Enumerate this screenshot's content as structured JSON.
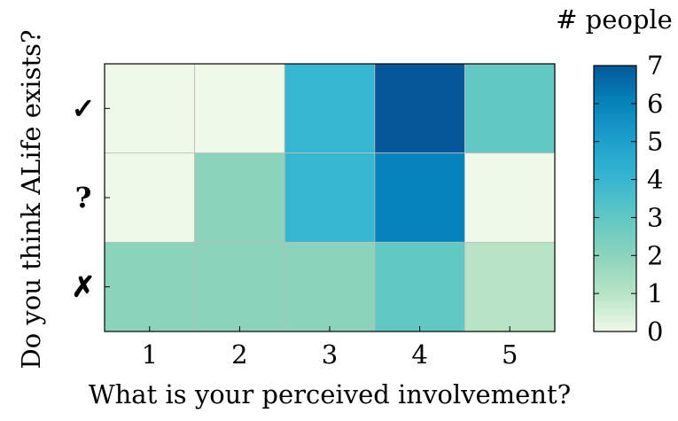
{
  "chart_data": {
    "type": "heatmap",
    "x_categories": [
      "1",
      "2",
      "3",
      "4",
      "5"
    ],
    "y_categories": [
      "✓",
      "?",
      "✗"
    ],
    "xlabel": "What is your perceived involvement?",
    "ylabel": "Do you think ALife exists?",
    "values": [
      [
        0,
        0,
        4,
        7,
        3
      ],
      [
        0,
        2,
        4,
        6,
        0
      ],
      [
        2,
        2,
        2,
        3,
        1
      ]
    ],
    "colorbar": {
      "title": "# people",
      "min": 0,
      "max": 7,
      "ticks": [
        "0",
        "1",
        "2",
        "3",
        "4",
        "5",
        "6",
        "7"
      ],
      "colormap": "GnBu",
      "colors": {
        "0": "#eff9e9",
        "1": "#b6e4c5",
        "2": "#8cd3bc",
        "3": "#61c8c4",
        "4": "#37b6d1",
        "5": "#1ea0cc",
        "6": "#0584bb",
        "7": "#04589a"
      }
    },
    "grid": false
  }
}
